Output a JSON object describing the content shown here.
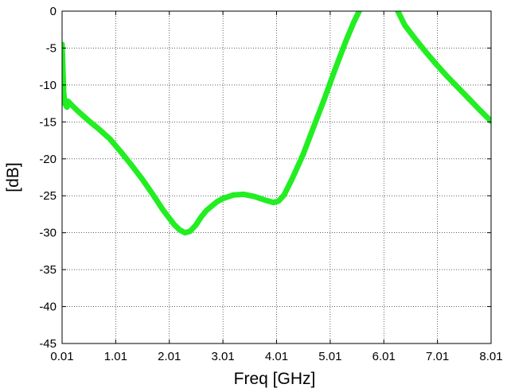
{
  "chart_data": {
    "type": "line",
    "title": "",
    "xlabel": "Freq [GHz]",
    "ylabel": "[dB]",
    "xlim": [
      0.01,
      8.01
    ],
    "ylim": [
      -45,
      0
    ],
    "xticks": [
      0.01,
      1.01,
      2.01,
      3.01,
      4.01,
      5.01,
      6.01,
      7.01,
      8.01
    ],
    "xtick_labels": [
      "0.01",
      "1.01",
      "2.01",
      "3.01",
      "4.01",
      "5.01",
      "6.01",
      "7.01",
      "8.01"
    ],
    "yticks": [
      0,
      -5,
      -10,
      -15,
      -20,
      -25,
      -30,
      -35,
      -40,
      -45
    ],
    "ytick_labels": [
      "0",
      "-5",
      "-10",
      "-15",
      "-20",
      "-25",
      "-30",
      "-35",
      "-40",
      "-45"
    ],
    "grid": true,
    "colors": {
      "series": "#22ee22",
      "axis": "#000000",
      "grid": "#000000",
      "background": "#ffffff"
    },
    "series": [
      {
        "x": [
          0.01,
          0.04,
          0.06,
          0.1,
          0.12,
          0.16,
          0.2,
          0.3,
          0.5,
          0.7,
          0.9,
          1.1,
          1.3,
          1.5,
          1.7,
          1.9,
          2.1,
          2.2,
          2.3,
          2.4,
          2.5,
          2.6,
          2.7,
          2.8,
          2.9,
          3.0,
          3.2,
          3.4,
          3.6,
          3.8,
          3.95,
          4.05,
          4.15,
          4.3,
          4.5,
          4.7,
          4.9,
          5.1,
          5.3,
          5.45,
          5.55
        ],
        "y": [
          -4.5,
          -11,
          -12.5,
          -13,
          -12.2,
          -12.5,
          -12.8,
          -13.5,
          -14.8,
          -16,
          -17.3,
          -19,
          -20.8,
          -22.7,
          -24.8,
          -27,
          -28.9,
          -29.6,
          -30,
          -29.8,
          -29,
          -27.9,
          -27,
          -26.4,
          -25.8,
          -25.4,
          -24.9,
          -24.8,
          -25.1,
          -25.6,
          -25.9,
          -25.7,
          -24.9,
          -22.7,
          -19.5,
          -15.7,
          -11.9,
          -7.9,
          -4.1,
          -1.5,
          0
        ]
      },
      {
        "x": [
          6.27,
          6.4,
          6.6,
          6.8,
          7.0,
          7.2,
          7.4,
          7.6,
          7.8,
          8.01
        ],
        "y": [
          0,
          -1.9,
          -3.8,
          -5.6,
          -7.3,
          -8.9,
          -10.4,
          -11.9,
          -13.4,
          -14.9
        ]
      }
    ]
  }
}
